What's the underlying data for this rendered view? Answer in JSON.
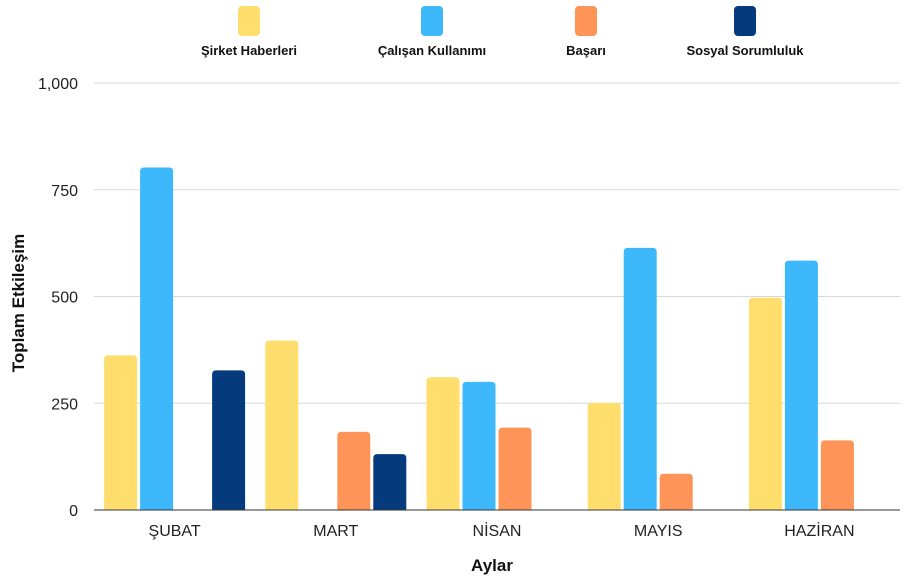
{
  "chart_data": {
    "type": "bar",
    "title": "",
    "xlabel": "Aylar",
    "ylabel": "Toplam Etkileşim",
    "ylim": [
      0,
      1000
    ],
    "yticks": [
      0,
      250,
      500,
      750,
      1000
    ],
    "ytick_labels": [
      "0",
      "250",
      "500",
      "750",
      "1,000"
    ],
    "grid": true,
    "legend_position": "top",
    "categories": [
      "ŞUBAT",
      "MART",
      "NİSAN",
      "MAYIS",
      "HAZİRAN"
    ],
    "series": [
      {
        "name": "Şirket Haberleri",
        "color": "#FFDE6E",
        "values": [
          362,
          397,
          311,
          251,
          497
        ]
      },
      {
        "name": "Çalışan Kullanımı",
        "color": "#3DB8FB",
        "values": [
          802,
          0,
          300,
          614,
          584
        ]
      },
      {
        "name": "Başarı",
        "color": "#FF9458",
        "values": [
          0,
          183,
          193,
          85,
          163
        ]
      },
      {
        "name": "Sosyal Sorumluluk",
        "color": "#053A7C",
        "values": [
          327,
          131,
          0,
          0,
          0
        ]
      }
    ]
  }
}
